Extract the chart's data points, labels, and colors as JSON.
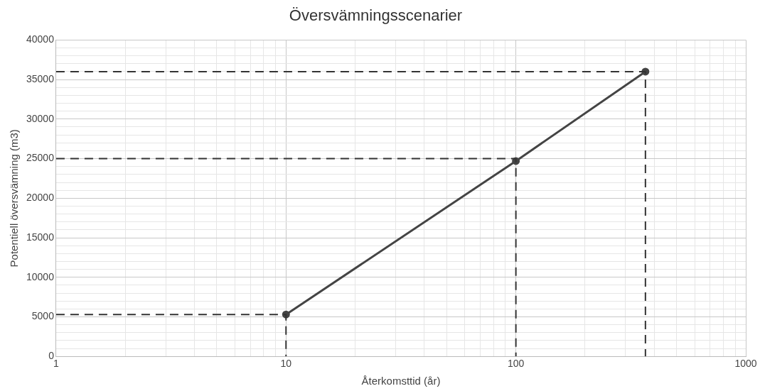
{
  "chart_data": {
    "type": "line",
    "title": "Översvämningsscenarier",
    "xlabel": "Återkomsttid (år)",
    "ylabel": "Potentiell översvämning (m3)",
    "log": "x",
    "grid": true,
    "legend": false,
    "xlim": [
      1,
      1000
    ],
    "ylim": [
      0,
      40000
    ],
    "xticks": [
      1,
      {
        "value": 2,
        "label": null
      },
      {
        "value": 3,
        "label": null
      },
      {
        "value": 4,
        "label": null
      },
      {
        "value": 5,
        "label": null
      },
      {
        "value": 6,
        "label": null
      },
      {
        "value": 7,
        "label": null
      },
      {
        "value": 8,
        "label": null
      },
      {
        "value": 9,
        "label": null
      },
      10,
      {
        "value": 20,
        "label": null
      },
      {
        "value": 30,
        "label": null
      },
      {
        "value": 40,
        "label": null
      },
      {
        "value": 50,
        "label": null
      },
      {
        "value": 60,
        "label": null
      },
      {
        "value": 70,
        "label": null
      },
      {
        "value": 80,
        "label": null
      },
      {
        "value": 90,
        "label": null
      },
      100,
      {
        "value": 200,
        "label": null
      },
      {
        "value": 300,
        "label": null
      },
      {
        "value": 400,
        "label": null
      },
      {
        "value": 500,
        "label": null
      },
      {
        "value": 600,
        "label": null
      },
      {
        "value": 700,
        "label": null
      },
      {
        "value": 800,
        "label": null
      },
      {
        "value": 900,
        "label": null
      },
      1000
    ],
    "yticks": [
      0,
      {
        "value": 1000,
        "label": null
      },
      {
        "value": 2000,
        "label": null
      },
      {
        "value": 3000,
        "label": null
      },
      {
        "value": 4000,
        "label": null
      },
      5000,
      {
        "value": 6000,
        "label": null
      },
      {
        "value": 7000,
        "label": null
      },
      {
        "value": 8000,
        "label": null
      },
      {
        "value": 9000,
        "label": null
      },
      10000,
      {
        "value": 11000,
        "label": null
      },
      {
        "value": 12000,
        "label": null
      },
      {
        "value": 13000,
        "label": null
      },
      {
        "value": 14000,
        "label": null
      },
      15000,
      {
        "value": 16000,
        "label": null
      },
      {
        "value": 17000,
        "label": null
      },
      {
        "value": 18000,
        "label": null
      },
      {
        "value": 19000,
        "label": null
      },
      20000,
      {
        "value": 21000,
        "label": null
      },
      {
        "value": 22000,
        "label": null
      },
      {
        "value": 23000,
        "label": null
      },
      {
        "value": 24000,
        "label": null
      },
      25000,
      {
        "value": 26000,
        "label": null
      },
      {
        "value": 27000,
        "label": null
      },
      {
        "value": 28000,
        "label": null
      },
      {
        "value": 29000,
        "label": null
      },
      30000,
      {
        "value": 31000,
        "label": null
      },
      {
        "value": 32000,
        "label": null
      },
      {
        "value": 33000,
        "label": null
      },
      {
        "value": 34000,
        "label": null
      },
      35000,
      {
        "value": 36000,
        "label": null
      },
      {
        "value": 37000,
        "label": null
      },
      {
        "value": 38000,
        "label": null
      },
      {
        "value": 39000,
        "label": null
      },
      40000
    ],
    "series": [
      {
        "color": "#333333",
        "line_style": "dashed",
        "marker": "none",
        "x": [
          1,
          10,
          10
        ],
        "values": [
          5300,
          5300,
          0
        ]
      },
      {
        "color": "#333333",
        "line_style": "dashed",
        "marker": "none",
        "x": [
          1,
          100,
          100
        ],
        "values": [
          25000,
          25000,
          0
        ]
      },
      {
        "color": "#333333",
        "line_style": "dashed",
        "marker": "none",
        "x": [
          1,
          366,
          366
        ],
        "values": [
          36000,
          36000,
          0
        ]
      },
      {
        "color": "#444444",
        "line_style": "solid",
        "marker": "circle",
        "x": [
          10,
          100,
          366
        ],
        "values": [
          5300,
          24700,
          36000
        ]
      }
    ]
  }
}
